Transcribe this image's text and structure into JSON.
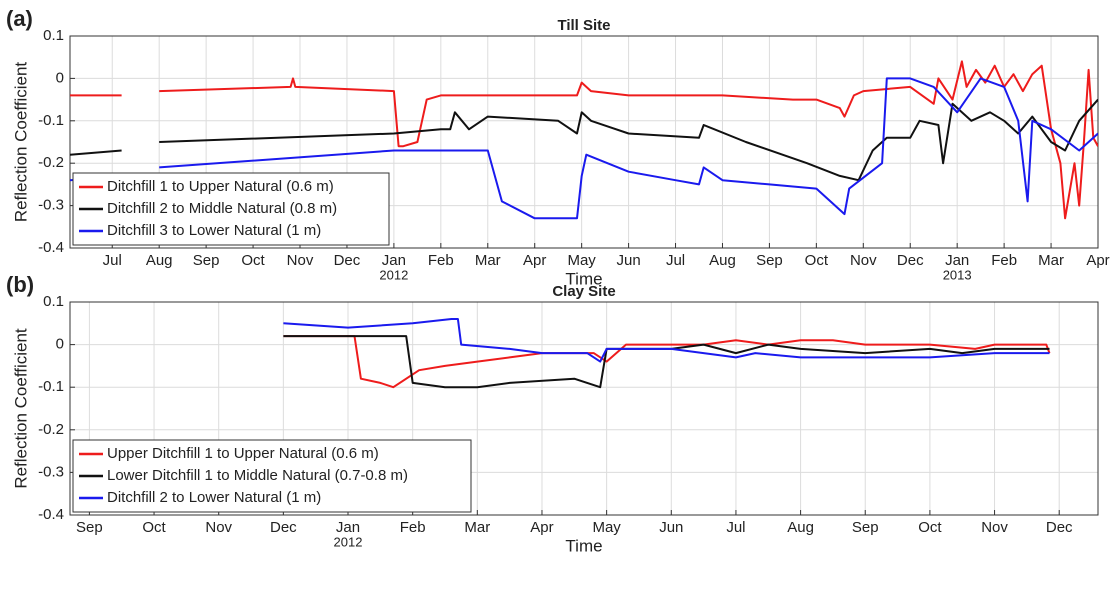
{
  "chart_data": [
    {
      "type": "line",
      "panel_label": "(a)",
      "title": "Till Site",
      "x_label": "Time",
      "y_label": "Reflection Coefficient",
      "xlim": [
        -0.9,
        21
      ],
      "ylim": [
        -0.4,
        0.1
      ],
      "yticks": [
        -0.4,
        -0.3,
        -0.2,
        -0.1,
        0,
        0.1
      ],
      "xticks": [
        {
          "value": 0,
          "label": "Jul"
        },
        {
          "value": 1,
          "label": "Aug"
        },
        {
          "value": 2,
          "label": "Sep"
        },
        {
          "value": 3,
          "label": "Oct"
        },
        {
          "value": 4,
          "label": "Nov"
        },
        {
          "value": 5,
          "label": "Dec"
        },
        {
          "value": 6,
          "label": "Jan"
        },
        {
          "value": 7,
          "label": "Feb"
        },
        {
          "value": 8,
          "label": "Mar"
        },
        {
          "value": 9,
          "label": "Apr"
        },
        {
          "value": 10,
          "label": "May"
        },
        {
          "value": 11,
          "label": "Jun"
        },
        {
          "value": 12,
          "label": "Jul"
        },
        {
          "value": 13,
          "label": "Aug"
        },
        {
          "value": 14,
          "label": "Sep"
        },
        {
          "value": 15,
          "label": "Oct"
        },
        {
          "value": 16,
          "label": "Nov"
        },
        {
          "value": 17,
          "label": "Dec"
        },
        {
          "value": 18,
          "label": "Jan"
        },
        {
          "value": 19,
          "label": "Feb"
        },
        {
          "value": 20,
          "label": "Mar"
        },
        {
          "value": 21,
          "label": "Apr"
        }
      ],
      "xtick_years": [
        {
          "value": 6,
          "label": "2012"
        },
        {
          "value": 18,
          "label": "2013"
        }
      ],
      "grid": true,
      "legend": "lower left",
      "series": [
        {
          "name": "Ditchfill 1 to Upper Natural (0.6 m)",
          "color": "#ee1c1c",
          "x": [
            -0.9,
            0.2,
            0.6,
            1.0,
            3.8,
            3.85,
            3.9,
            6.0,
            6.1,
            6.2,
            6.5,
            6.7,
            7.0,
            8.0,
            9.9,
            10.0,
            10.2,
            11.0,
            13.0,
            14.5,
            15.0,
            15.5,
            15.6,
            15.8,
            16.0,
            17.0,
            17.5,
            17.6,
            17.9,
            18.1,
            18.2,
            18.4,
            18.6,
            18.8,
            19.0,
            19.2,
            19.4,
            19.6,
            19.8,
            20.0,
            20.2,
            20.3,
            20.5,
            20.6,
            20.7,
            20.8,
            20.9,
            21.0
          ],
          "values": [
            -0.04,
            -0.04,
            null,
            -0.03,
            -0.02,
            0.0,
            -0.02,
            -0.03,
            -0.16,
            -0.16,
            -0.15,
            -0.05,
            -0.04,
            -0.04,
            -0.04,
            -0.01,
            -0.03,
            -0.04,
            -0.04,
            -0.05,
            -0.05,
            -0.07,
            -0.09,
            -0.04,
            -0.03,
            -0.02,
            -0.06,
            0.0,
            -0.05,
            0.04,
            -0.02,
            0.02,
            -0.01,
            0.03,
            -0.02,
            0.01,
            -0.03,
            0.01,
            0.03,
            -0.12,
            -0.2,
            -0.33,
            -0.2,
            -0.3,
            -0.15,
            0.02,
            -0.14,
            -0.16
          ]
        },
        {
          "name": "Ditchfill 2 to Middle Natural (0.8 m)",
          "color": "#111111",
          "x": [
            -0.9,
            0.2,
            0.6,
            1.0,
            6.0,
            7.0,
            7.2,
            7.3,
            7.6,
            8.0,
            9.5,
            9.9,
            10.0,
            10.2,
            11.0,
            12.5,
            12.6,
            13.5,
            14.8,
            15.5,
            15.9,
            16.2,
            16.5,
            17.0,
            17.2,
            17.6,
            17.7,
            17.9,
            18.3,
            18.7,
            19.0,
            19.3,
            19.6,
            20.0,
            20.3,
            20.6,
            21.0
          ],
          "values": [
            -0.18,
            -0.17,
            null,
            -0.15,
            -0.13,
            -0.12,
            -0.12,
            -0.08,
            -0.12,
            -0.09,
            -0.1,
            -0.13,
            -0.08,
            -0.1,
            -0.13,
            -0.14,
            -0.11,
            -0.15,
            -0.2,
            -0.23,
            -0.24,
            -0.17,
            -0.14,
            -0.14,
            -0.1,
            -0.11,
            -0.2,
            -0.06,
            -0.1,
            -0.08,
            -0.1,
            -0.13,
            -0.09,
            -0.15,
            -0.17,
            -0.1,
            -0.05
          ]
        },
        {
          "name": "Ditchfill 3 to Lower Natural (1 m)",
          "color": "#1a1aee",
          "x": [
            -0.9,
            0.2,
            0.6,
            1.0,
            6.0,
            8.0,
            8.3,
            9.0,
            9.9,
            10.0,
            10.1,
            11.0,
            12.0,
            12.5,
            12.6,
            13.0,
            14.0,
            15.0,
            15.6,
            15.7,
            16.4,
            16.5,
            17.0,
            17.5,
            18.0,
            18.5,
            19.0,
            19.3,
            19.5,
            19.6,
            20.0,
            20.6,
            21.0
          ],
          "values": [
            -0.24,
            -0.23,
            null,
            -0.21,
            -0.17,
            -0.17,
            -0.29,
            -0.33,
            -0.33,
            -0.23,
            -0.18,
            -0.22,
            -0.24,
            -0.25,
            -0.21,
            -0.24,
            -0.25,
            -0.26,
            -0.32,
            -0.26,
            -0.2,
            0.0,
            0.0,
            -0.02,
            -0.08,
            0.0,
            -0.02,
            -0.1,
            -0.29,
            -0.1,
            -0.12,
            -0.17,
            -0.13
          ]
        }
      ]
    },
    {
      "type": "line",
      "panel_label": "(b)",
      "title": "Clay Site",
      "x_label": "Time",
      "y_label": "Reflection Coefficient",
      "xlim": [
        -0.3,
        15.6
      ],
      "ylim": [
        -0.4,
        0.1
      ],
      "yticks": [
        -0.4,
        -0.3,
        -0.2,
        -0.1,
        0,
        0.1
      ],
      "xticks": [
        {
          "value": 0,
          "label": "Sep"
        },
        {
          "value": 1,
          "label": "Oct"
        },
        {
          "value": 2,
          "label": "Nov"
        },
        {
          "value": 3,
          "label": "Dec"
        },
        {
          "value": 4,
          "label": "Jan"
        },
        {
          "value": 5,
          "label": "Feb"
        },
        {
          "value": 6,
          "label": "Mar"
        },
        {
          "value": 7,
          "label": "Apr"
        },
        {
          "value": 8,
          "label": "May"
        },
        {
          "value": 9,
          "label": "Jun"
        },
        {
          "value": 10,
          "label": "Jul"
        },
        {
          "value": 11,
          "label": "Aug"
        },
        {
          "value": 12,
          "label": "Sep"
        },
        {
          "value": 13,
          "label": "Oct"
        },
        {
          "value": 14,
          "label": "Nov"
        },
        {
          "value": 15,
          "label": "Dec"
        }
      ],
      "xtick_years": [
        {
          "value": 4,
          "label": "2012"
        }
      ],
      "grid": true,
      "legend": "lower left",
      "series": [
        {
          "name": "Upper Ditchfill 1 to Upper Natural (0.6 m)",
          "color": "#ee1c1c",
          "x": [
            3.0,
            4.1,
            4.2,
            4.5,
            4.7,
            4.9,
            5.1,
            5.5,
            6.0,
            6.5,
            7.0,
            7.8,
            8.0,
            8.3,
            9.5,
            10.0,
            10.5,
            11.0,
            11.5,
            12.0,
            13.0,
            13.7,
            14.0,
            14.8,
            14.85
          ],
          "values": [
            0.02,
            0.02,
            -0.08,
            -0.09,
            -0.1,
            -0.08,
            -0.06,
            -0.05,
            -0.04,
            -0.03,
            -0.02,
            -0.02,
            -0.04,
            0.0,
            0.0,
            0.01,
            0.0,
            0.01,
            0.01,
            0.0,
            0.0,
            -0.01,
            0.0,
            0.0,
            -0.02
          ]
        },
        {
          "name": "Lower Ditchfill 1 to Middle Natural (0.7-0.8 m)",
          "color": "#111111",
          "x": [
            3.0,
            4.8,
            4.9,
            5.0,
            5.5,
            6.0,
            6.5,
            7.5,
            7.9,
            8.0,
            9.0,
            9.5,
            10.0,
            10.5,
            11.0,
            12.0,
            13.0,
            13.5,
            14.0,
            14.85
          ],
          "values": [
            0.02,
            0.02,
            0.02,
            -0.09,
            -0.1,
            -0.1,
            -0.09,
            -0.08,
            -0.1,
            -0.01,
            -0.01,
            0.0,
            -0.02,
            0.0,
            -0.01,
            -0.02,
            -0.01,
            -0.02,
            -0.01,
            -0.01
          ]
        },
        {
          "name": "Ditchfill 2 to Lower Natural (1 m)",
          "color": "#1a1aee",
          "x": [
            3.0,
            4.0,
            5.0,
            5.6,
            5.7,
            5.75,
            6.5,
            7.0,
            7.7,
            7.9,
            8.0,
            9.0,
            9.5,
            10.0,
            10.3,
            11.0,
            12.0,
            13.0,
            14.0,
            14.85
          ],
          "values": [
            0.05,
            0.04,
            0.05,
            0.06,
            0.06,
            0.0,
            -0.01,
            -0.02,
            -0.02,
            -0.04,
            -0.01,
            -0.01,
            -0.02,
            -0.03,
            -0.02,
            -0.03,
            -0.03,
            -0.03,
            -0.02,
            -0.02
          ]
        }
      ]
    }
  ]
}
